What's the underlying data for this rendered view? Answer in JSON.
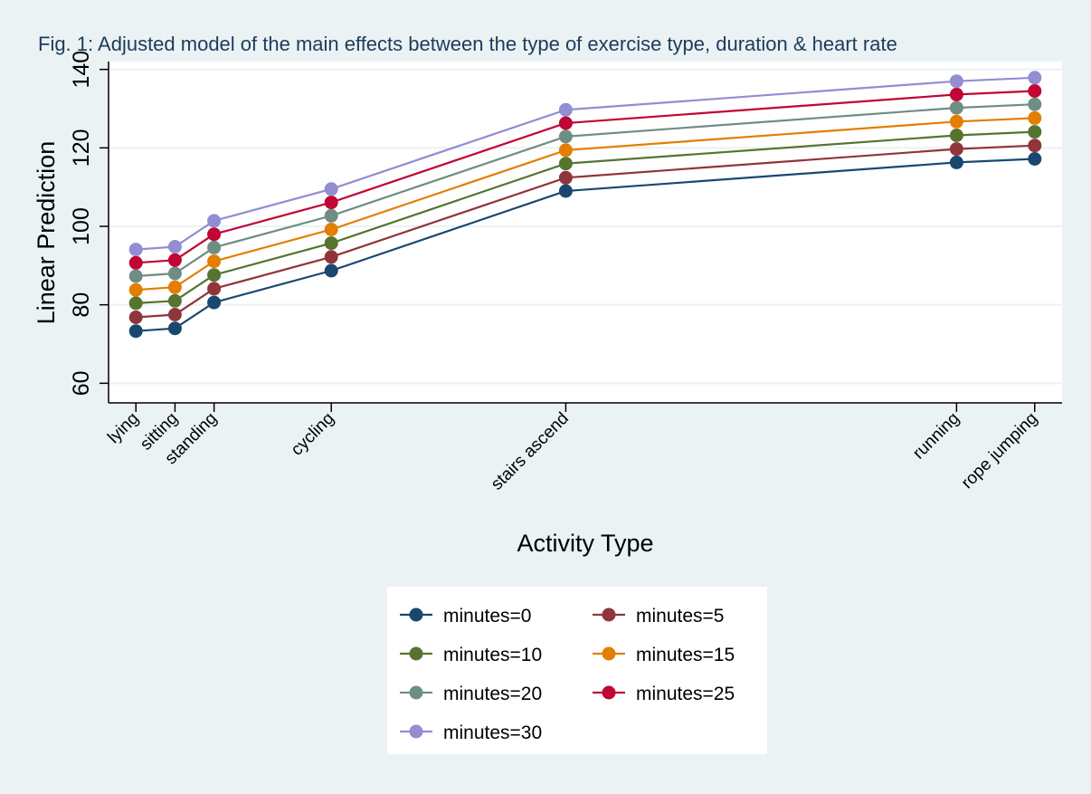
{
  "chart_data": {
    "type": "line",
    "title": "Fig. 1: Adjusted model of the main effects between the type of exercise type, duration & heart rate",
    "xlabel": "Activity Type",
    "ylabel": "Linear Prediction",
    "ylim": [
      55,
      142
    ],
    "yticks": [
      60,
      80,
      100,
      120,
      140
    ],
    "grid": true,
    "legend_position": "bottom",
    "categories": [
      "lying",
      "sitting",
      "standing",
      "cycling",
      "stairs ascend",
      "running",
      "rope jumping"
    ],
    "x": [
      1,
      2,
      3,
      6,
      12,
      22,
      24
    ],
    "xlim": [
      0.3,
      24.7
    ],
    "series": [
      {
        "name": "minutes=0",
        "color": "#1a476f",
        "values": [
          73.3,
          74.0,
          80.6,
          88.7,
          109.0,
          116.3,
          117.2
        ]
      },
      {
        "name": "minutes=5",
        "color": "#90353b",
        "values": [
          76.8,
          77.5,
          84.1,
          92.2,
          112.4,
          119.7,
          120.6
        ]
      },
      {
        "name": "minutes=10",
        "color": "#55752f",
        "values": [
          80.4,
          81.0,
          87.6,
          95.7,
          116.0,
          123.2,
          124.1
        ]
      },
      {
        "name": "minutes=15",
        "color": "#e37e00",
        "values": [
          83.8,
          84.5,
          91.1,
          99.2,
          119.4,
          126.7,
          127.6
        ]
      },
      {
        "name": "minutes=20",
        "color": "#6e8e84",
        "values": [
          87.3,
          88.0,
          94.6,
          102.7,
          122.9,
          130.2,
          131.1
        ]
      },
      {
        "name": "minutes=25",
        "color": "#c10534",
        "values": [
          90.7,
          91.4,
          98.0,
          106.1,
          126.3,
          133.6,
          134.5
        ]
      },
      {
        "name": "minutes=30",
        "color": "#938dd2",
        "values": [
          94.1,
          94.8,
          101.4,
          109.5,
          129.7,
          137.0,
          137.9
        ]
      }
    ]
  }
}
